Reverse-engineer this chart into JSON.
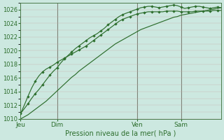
{
  "xlabel": "Pression niveau de la mer( hPa )",
  "ylim": [
    1010,
    1027
  ],
  "yticks": [
    1010,
    1012,
    1014,
    1016,
    1018,
    1020,
    1022,
    1024,
    1026
  ],
  "bg_color": "#cce8e0",
  "line_color": "#2d6e2d",
  "xtick_labels": [
    "Jeu",
    "Dim",
    "Ven",
    "Sam"
  ],
  "xtick_positions": [
    0,
    10,
    32,
    44
  ],
  "total_points": 56,
  "line_marked1": [
    1010.8,
    1011.5,
    1012.2,
    1013.0,
    1013.7,
    1014.3,
    1015.0,
    1015.7,
    1016.4,
    1017.0,
    1017.5,
    1018.2,
    1018.8,
    1019.3,
    1019.8,
    1020.3,
    1020.7,
    1021.1,
    1021.5,
    1021.9,
    1022.2,
    1022.5,
    1022.9,
    1023.3,
    1023.8,
    1024.2,
    1024.6,
    1025.0,
    1025.3,
    1025.5,
    1025.7,
    1025.9,
    1026.1,
    1026.3,
    1026.4,
    1026.5,
    1026.5,
    1026.4,
    1026.3,
    1026.4,
    1026.5,
    1026.6,
    1026.7,
    1026.6,
    1026.4,
    1026.2,
    1026.3,
    1026.4,
    1026.5,
    1026.5,
    1026.4,
    1026.3,
    1026.2,
    1026.3,
    1026.4,
    1026.3
  ],
  "line_marked2": [
    1010.8,
    1012.0,
    1013.3,
    1014.5,
    1015.5,
    1016.3,
    1016.9,
    1017.3,
    1017.6,
    1017.9,
    1018.3,
    1018.6,
    1018.9,
    1019.2,
    1019.5,
    1019.8,
    1020.1,
    1020.4,
    1020.7,
    1021.1,
    1021.5,
    1021.9,
    1022.3,
    1022.7,
    1023.1,
    1023.5,
    1023.9,
    1024.3,
    1024.6,
    1024.8,
    1025.0,
    1025.2,
    1025.4,
    1025.5,
    1025.6,
    1025.7,
    1025.7,
    1025.7,
    1025.7,
    1025.7,
    1025.8,
    1025.8,
    1025.8,
    1025.8,
    1025.7,
    1025.7,
    1025.7,
    1025.7,
    1025.8,
    1025.8,
    1025.8,
    1025.8,
    1025.8,
    1025.9,
    1025.9,
    1025.9
  ],
  "line_smooth": [
    1010.0,
    1010.3,
    1010.6,
    1011.0,
    1011.4,
    1011.8,
    1012.2,
    1012.6,
    1013.1,
    1013.6,
    1014.1,
    1014.6,
    1015.1,
    1015.6,
    1016.1,
    1016.5,
    1017.0,
    1017.4,
    1017.8,
    1018.2,
    1018.6,
    1019.0,
    1019.4,
    1019.8,
    1020.2,
    1020.6,
    1021.0,
    1021.3,
    1021.6,
    1021.9,
    1022.2,
    1022.5,
    1022.8,
    1023.1,
    1023.3,
    1023.5,
    1023.7,
    1023.9,
    1024.1,
    1024.3,
    1024.5,
    1024.7,
    1024.9,
    1025.0,
    1025.2,
    1025.3,
    1025.4,
    1025.5,
    1025.6,
    1025.7,
    1025.8,
    1025.9,
    1026.0,
    1026.1,
    1026.2,
    1026.3
  ]
}
